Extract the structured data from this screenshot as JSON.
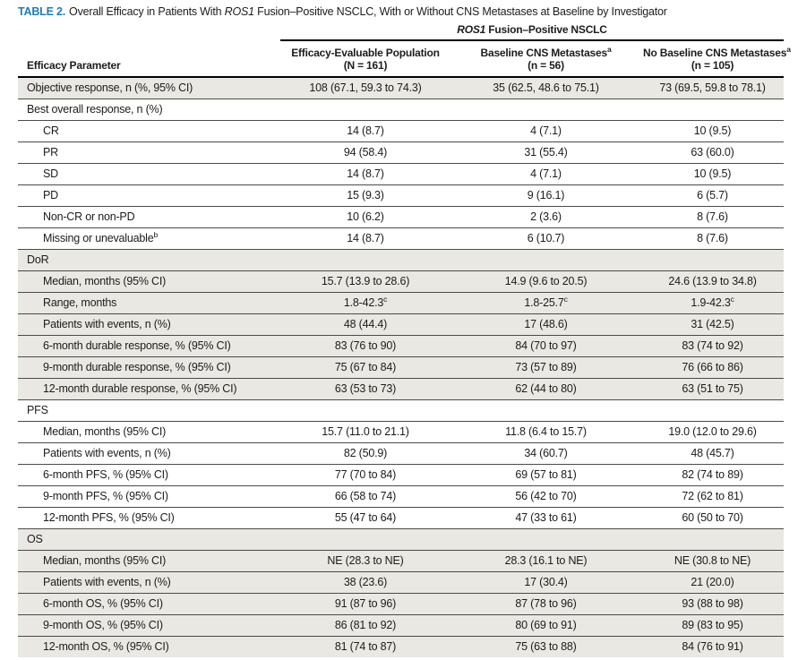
{
  "header": {
    "table_label": "TABLE 2.",
    "title_pre": "Overall Efficacy in Patients With ",
    "title_italic": "ROS1",
    "title_post": " Fusion–Positive NSCLC, With or Without CNS Metastases at Baseline by Investigator",
    "spanner_italic": "ROS1",
    "spanner_rest": " Fusion–Positive NSCLC"
  },
  "columns": [
    {
      "label": "Efficacy Parameter"
    },
    {
      "line1": "Efficacy-Evaluable Population",
      "line2": "(N = 161)"
    },
    {
      "line1": "Baseline CNS Metastases",
      "sup": "a",
      "line2": "(n = 56)"
    },
    {
      "line1": "No Baseline CNS Metastases",
      "sup": "a",
      "line2": "(n = 105)"
    }
  ],
  "colors": {
    "accent_blue": "#1b7cc0",
    "row_shade": "#e9e8e3"
  },
  "rows": [
    {
      "label": "Objective response, n (%, 95% CI)",
      "section": false,
      "shaded": true,
      "indent": false,
      "values": [
        "108 (67.1, 59.3 to 74.3)",
        "35 (62.5, 48.6 to 75.1)",
        "73 (69.5, 59.8 to 78.1)"
      ]
    },
    {
      "label": "Best overall response, n (%)",
      "section": true,
      "shaded": false
    },
    {
      "label": "CR",
      "section": false,
      "shaded": false,
      "indent": true,
      "values": [
        "14 (8.7)",
        "4 (7.1)",
        "10 (9.5)"
      ]
    },
    {
      "label": "PR",
      "section": false,
      "shaded": false,
      "indent": true,
      "values": [
        "94 (58.4)",
        "31 (55.4)",
        "63 (60.0)"
      ]
    },
    {
      "label": "SD",
      "section": false,
      "shaded": false,
      "indent": true,
      "values": [
        "14 (8.7)",
        "4 (7.1)",
        "10 (9.5)"
      ]
    },
    {
      "label": "PD",
      "section": false,
      "shaded": false,
      "indent": true,
      "values": [
        "15 (9.3)",
        "9 (16.1)",
        "6 (5.7)"
      ]
    },
    {
      "label": "Non-CR or non-PD",
      "section": false,
      "shaded": false,
      "indent": true,
      "values": [
        "10 (6.2)",
        "2 (3.6)",
        "8 (7.6)"
      ]
    },
    {
      "label": "Missing or unevaluable",
      "sup": "b",
      "section": false,
      "shaded": false,
      "indent": true,
      "values": [
        "14 (8.7)",
        "6 (10.7)",
        "8 (7.6)"
      ]
    },
    {
      "label": "DoR",
      "section": true,
      "shaded": true
    },
    {
      "label": "Median, months (95% CI)",
      "section": false,
      "shaded": true,
      "indent": true,
      "values": [
        "15.7 (13.9 to 28.6)",
        "14.9 (9.6 to 20.5)",
        "24.6 (13.9 to 34.8)"
      ]
    },
    {
      "label": "Range, months",
      "section": false,
      "shaded": true,
      "indent": true,
      "values": [
        "1.8-42.3",
        "1.8-25.7",
        "1.9-42.3"
      ],
      "values_sup": "c"
    },
    {
      "label": "Patients with events, n (%)",
      "section": false,
      "shaded": true,
      "indent": true,
      "values": [
        "48 (44.4)",
        "17 (48.6)",
        "31 (42.5)"
      ]
    },
    {
      "label": "6-month durable response, % (95% CI)",
      "section": false,
      "shaded": true,
      "indent": true,
      "values": [
        "83 (76 to 90)",
        "84 (70 to 97)",
        "83 (74 to 92)"
      ]
    },
    {
      "label": "9-month durable response, % (95% CI)",
      "section": false,
      "shaded": true,
      "indent": true,
      "values": [
        "75 (67 to 84)",
        "73 (57 to 89)",
        "76 (66 to 86)"
      ]
    },
    {
      "label": "12-month durable response, % (95% CI)",
      "section": false,
      "shaded": true,
      "indent": true,
      "values": [
        "63 (53 to 73)",
        "62 (44 to 80)",
        "63 (51 to 75)"
      ]
    },
    {
      "label": "PFS",
      "section": true,
      "shaded": false
    },
    {
      "label": "Median, months (95% CI)",
      "section": false,
      "shaded": false,
      "indent": true,
      "values": [
        "15.7 (11.0 to 21.1)",
        "11.8 (6.4 to 15.7)",
        "19.0 (12.0 to 29.6)"
      ]
    },
    {
      "label": "Patients with events, n (%)",
      "section": false,
      "shaded": false,
      "indent": true,
      "values": [
        "82 (50.9)",
        "34 (60.7)",
        "48 (45.7)"
      ]
    },
    {
      "label": "6-month PFS, % (95% CI)",
      "section": false,
      "shaded": false,
      "indent": true,
      "values": [
        "77 (70 to 84)",
        "69 (57 to 81)",
        "82 (74 to 89)"
      ]
    },
    {
      "label": "9-month PFS, % (95% CI)",
      "section": false,
      "shaded": false,
      "indent": true,
      "values": [
        "66 (58 to 74)",
        "56 (42 to 70)",
        "72 (62 to 81)"
      ]
    },
    {
      "label": "12-month PFS, % (95% CI)",
      "section": false,
      "shaded": false,
      "indent": true,
      "values": [
        "55 (47 to 64)",
        "47 (33 to 61)",
        "60 (50 to 70)"
      ]
    },
    {
      "label": "OS",
      "section": true,
      "shaded": true
    },
    {
      "label": "Median, months (95% CI)",
      "section": false,
      "shaded": true,
      "indent": true,
      "values": [
        "NE (28.3 to NE)",
        "28.3 (16.1 to NE)",
        "NE (30.8 to NE)"
      ]
    },
    {
      "label": "Patients with events, n (%)",
      "section": false,
      "shaded": true,
      "indent": true,
      "values": [
        "38 (23.6)",
        "17 (30.4)",
        "21 (20.0)"
      ]
    },
    {
      "label": "6-month OS, % (95% CI)",
      "section": false,
      "shaded": true,
      "indent": true,
      "values": [
        "91 (87 to 96)",
        "87 (78 to 96)",
        "93 (88 to 98)"
      ]
    },
    {
      "label": "9-month OS, % (95% CI)",
      "section": false,
      "shaded": true,
      "indent": true,
      "values": [
        "86 (81 to 92)",
        "80 (69 to 91)",
        "89 (83 to 95)"
      ]
    },
    {
      "label": "12-month OS, % (95% CI)",
      "section": false,
      "shaded": true,
      "indent": true,
      "values": [
        "81 (74 to 87)",
        "75 (63 to 88)",
        "84 (76 to 91)"
      ]
    }
  ]
}
